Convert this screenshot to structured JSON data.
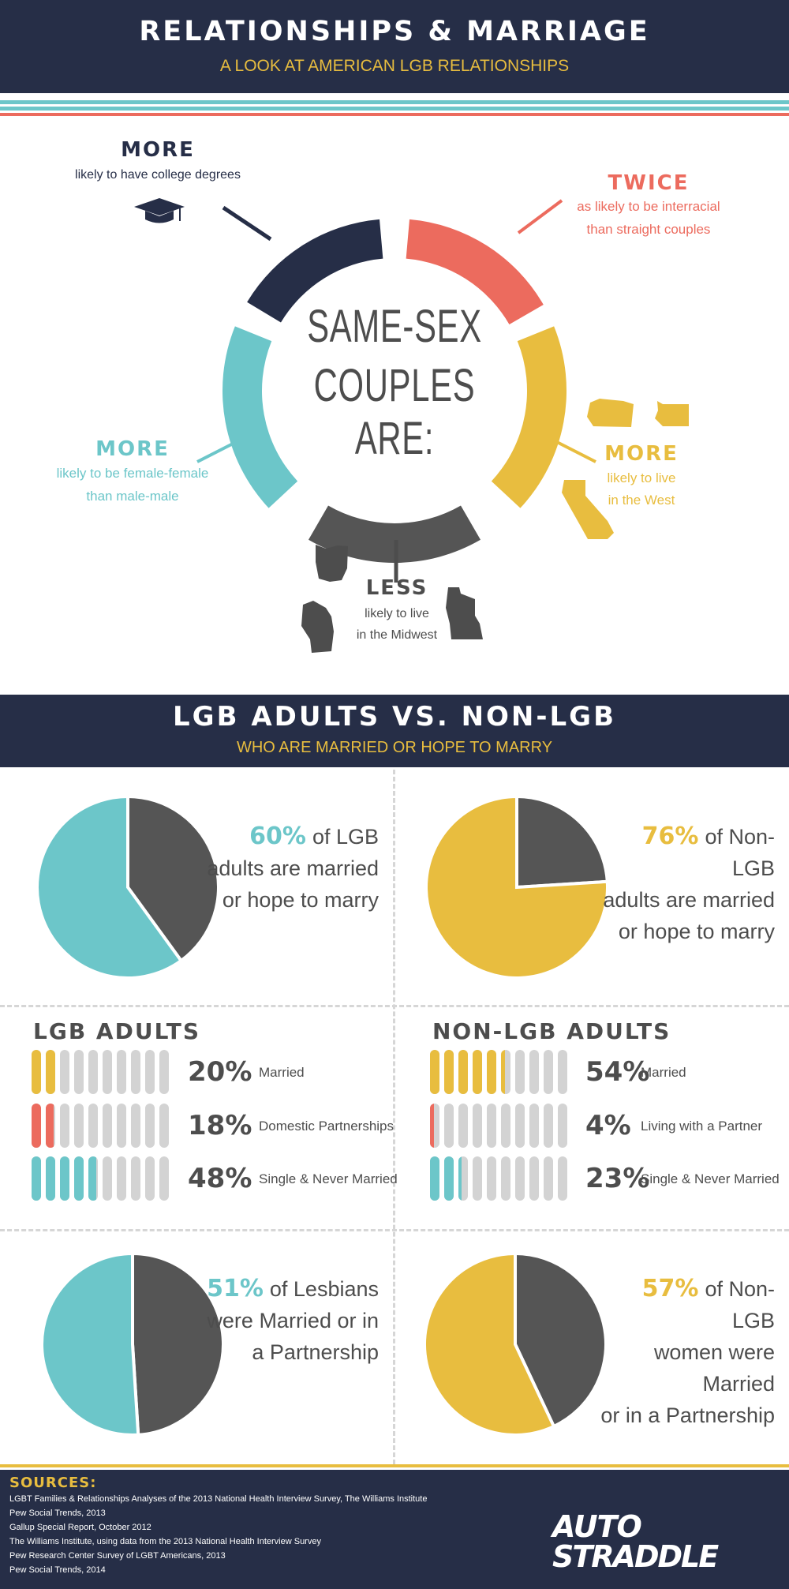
{
  "header": {
    "title": "RELATIONSHIPS & MARRIAGE",
    "subtitle": "A LOOK AT AMERICAN LGB RELATIONSHIPS"
  },
  "ring": {
    "center_line1": "SAME-SEX",
    "center_line2": "COUPLES ARE:",
    "college": {
      "head": "MORE",
      "text": "likely to have college degrees",
      "icon": "graduation-cap-icon",
      "color": "#262e47"
    },
    "interracial": {
      "head": "TWICE",
      "line1": "as likely to  be interracial",
      "line2": "than straight couples",
      "color": "#ec6b5e"
    },
    "west": {
      "head": "MORE",
      "line1": "likely to live",
      "line2": "in the West",
      "icons": [
        "oregon-map-icon",
        "washington-map-icon",
        "california-map-icon"
      ],
      "color": "#e8bd3f"
    },
    "female": {
      "head": "MORE",
      "line1": "likely to be female-female",
      "line2": "than male-male",
      "color": "#6cc6c9"
    },
    "midwest": {
      "head": "LESS",
      "line1": "likely to live",
      "line2": "in the Midwest",
      "icons": [
        "ohio-map-icon",
        "wisconsin-map-icon",
        "minnesota-map-icon"
      ],
      "color": "#555555"
    }
  },
  "section2": {
    "title": "LGB ADULTS VS. NON-LGB",
    "subtitle": "WHO ARE MARRIED OR HOPE TO MARRY"
  },
  "pies_top": [
    {
      "pct": "60%",
      "line1": "of LGB",
      "line2": "adults  are  married",
      "line3": "or hope to marry",
      "color": "#6cc6c9"
    },
    {
      "pct": "76%",
      "line1": "of Non-LGB",
      "line2": "adults are married",
      "line3": "or hope to marry",
      "color": "#e8bd3f"
    }
  ],
  "status": [
    {
      "title": "LGB ADULTS",
      "rows": [
        {
          "pct": "20%",
          "label": "Married",
          "color": "#e8bd3f",
          "value": 20
        },
        {
          "pct": "18%",
          "label": "Domestic Partnerships",
          "color": "#ec6b5e",
          "value": 18
        },
        {
          "pct": "48%",
          "label": "Single & Never Married",
          "color": "#6cc6c9",
          "value": 48
        }
      ]
    },
    {
      "title": "NON-LGB ADULTS",
      "rows": [
        {
          "pct": "54%",
          "label": "Married",
          "color": "#e8bd3f",
          "value": 54
        },
        {
          "pct": "4%",
          "label": "Living with a Partner",
          "color": "#ec6b5e",
          "value": 4
        },
        {
          "pct": "23%",
          "label": "Single & Never Married",
          "color": "#6cc6c9",
          "value": 23
        }
      ]
    }
  ],
  "pies_bottom": [
    {
      "pct": "51%",
      "line1": "of Lesbians",
      "line2": "were Married or in",
      "line3": "a Partnership",
      "color": "#6cc6c9"
    },
    {
      "pct": "57%",
      "line1": "of Non-LGB",
      "line2": "women were Married",
      "line3": "or in a Partnership",
      "color": "#e8bd3f"
    }
  ],
  "sources": {
    "title": "SOURCES:",
    "items": [
      "LGBT Families & Relationships Analyses of the 2013 National Health Interview Survey, The Williams Institute",
      "Pew Social Trends, 2013",
      "Gallup Special Report, October 2012",
      "The Williams Institute, using data from the 2013 National Health Interview Survey",
      "Pew Research Center Survey of LGBT Americans, 2013",
      "Pew Social Trends, 2014"
    ],
    "logo_line1": "AUTO",
    "logo_line2": "STRADDLE"
  },
  "chart_data": [
    {
      "type": "pie",
      "title": "",
      "categories": [
        "Married or hope to marry",
        "Other"
      ],
      "values": [
        60,
        40
      ],
      "colors": [
        "#6cc6c9",
        "#555555"
      ]
    },
    {
      "type": "pie",
      "title": "",
      "categories": [
        "Married or hope to marry",
        "Other"
      ],
      "values": [
        76,
        24
      ],
      "colors": [
        "#e8bd3f",
        "#555555"
      ]
    },
    {
      "type": "bar",
      "title": "LGB ADULTS",
      "categories": [
        "Married",
        "Domestic Partnerships",
        "Single & Never Married"
      ],
      "values": [
        20,
        18,
        48
      ],
      "ylim": [
        0,
        100
      ]
    },
    {
      "type": "bar",
      "title": "NON-LGB ADULTS",
      "categories": [
        "Married",
        "Living with a Partner",
        "Single & Never Married"
      ],
      "values": [
        54,
        4,
        23
      ],
      "ylim": [
        0,
        100
      ]
    },
    {
      "type": "pie",
      "title": "",
      "categories": [
        "Married or in a Partnership",
        "Other"
      ],
      "values": [
        51,
        49
      ],
      "colors": [
        "#6cc6c9",
        "#555555"
      ]
    },
    {
      "type": "pie",
      "title": "",
      "categories": [
        "Married or in a Partnership",
        "Other"
      ],
      "values": [
        57,
        43
      ],
      "colors": [
        "#e8bd3f",
        "#555555"
      ]
    }
  ]
}
